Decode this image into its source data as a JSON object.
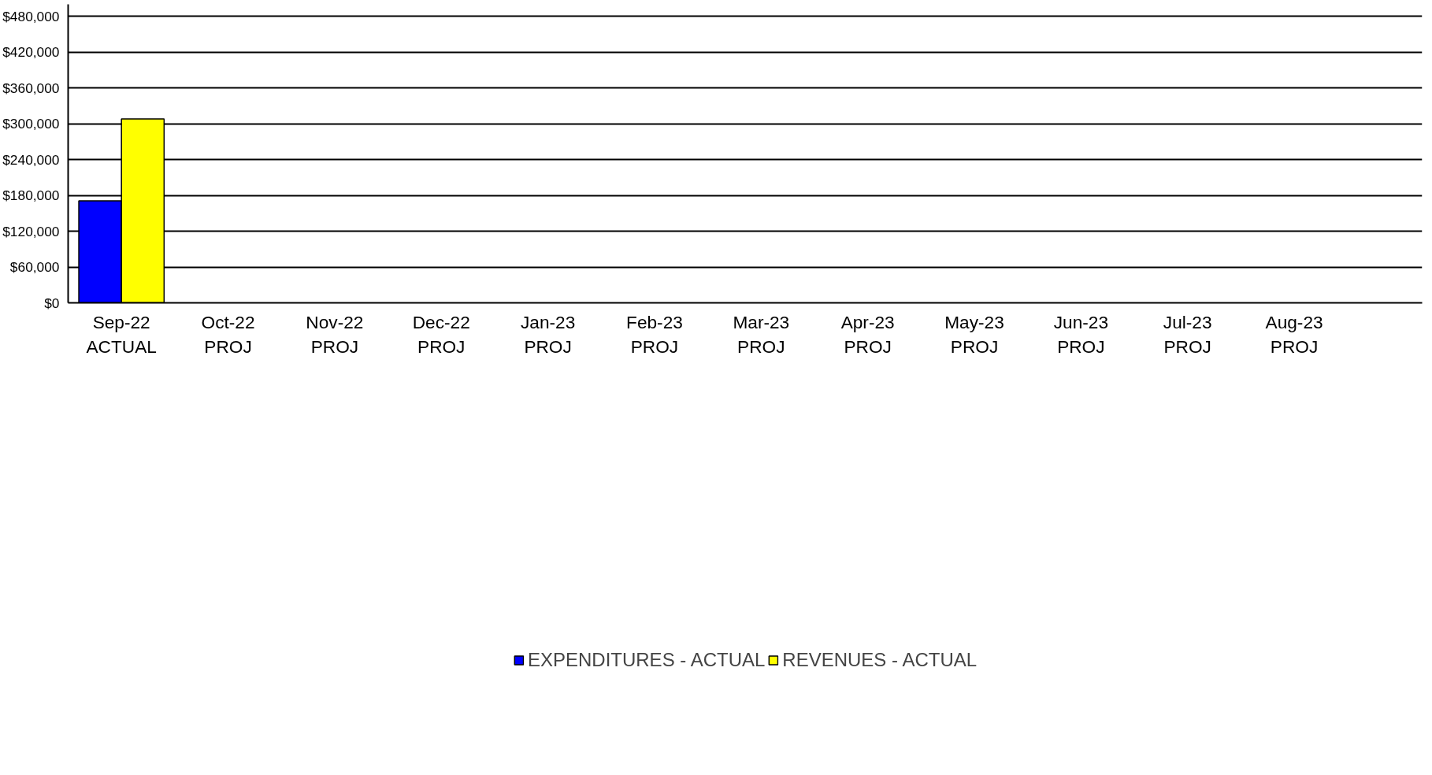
{
  "chart_data": {
    "type": "bar",
    "categories": [
      "Sep-22\nACTUAL",
      "Oct-22\nPROJ",
      "Nov-22\nPROJ",
      "Dec-22\nPROJ",
      "Jan-23\nPROJ",
      "Feb-23\nPROJ",
      "Mar-23\nPROJ",
      "Apr-23\nPROJ",
      "May-23\nPROJ",
      "Jun-23\nPROJ",
      "Jul-23\nPROJ",
      "Aug-23\nPROJ"
    ],
    "series": [
      {
        "name": "EXPENDITURES - ACTUAL",
        "color": "#0000ff",
        "values": [
          171000,
          null,
          null,
          null,
          null,
          null,
          null,
          null,
          null,
          null,
          null,
          null
        ]
      },
      {
        "name": "REVENUES - ACTUAL",
        "color": "#ffff00",
        "values": [
          308000,
          null,
          null,
          null,
          null,
          null,
          null,
          null,
          null,
          null,
          null,
          null
        ]
      }
    ],
    "ylim": [
      0,
      500000
    ],
    "yticks": [
      {
        "value": 0,
        "label": "$0"
      },
      {
        "value": 60000,
        "label": "$60,000"
      },
      {
        "value": 120000,
        "label": "$120,000"
      },
      {
        "value": 180000,
        "label": "$180,000"
      },
      {
        "value": 240000,
        "label": "$240,000"
      },
      {
        "value": 300000,
        "label": "$300,000"
      },
      {
        "value": 360000,
        "label": "$360,000"
      },
      {
        "value": 420000,
        "label": "$420,000"
      },
      {
        "value": 480000,
        "label": "$480,000"
      }
    ],
    "grid": "y",
    "legend": "bottom"
  }
}
